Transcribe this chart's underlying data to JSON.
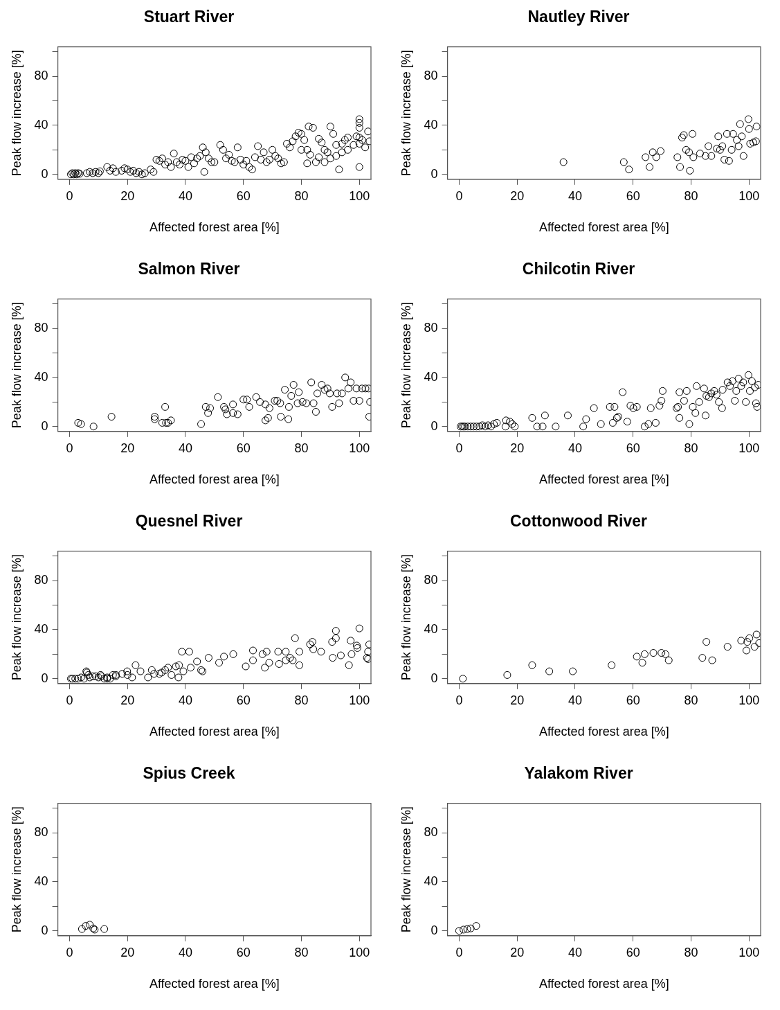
{
  "chart_data": [
    {
      "type": "scatter",
      "title": "Stuart River",
      "xlabel": "Affected forest area [%]",
      "ylabel": "Peak flow increase [%]",
      "marker": "circle",
      "xlim": [
        -4,
        104
      ],
      "ylim": [
        -4,
        104
      ],
      "xticks": [
        0,
        20,
        40,
        60,
        80,
        100
      ],
      "yticks": [
        0,
        {
          "value": 20,
          "label": null
        },
        40,
        {
          "value": 60,
          "label": null
        },
        80,
        {
          "value": 100,
          "label": null
        }
      ],
      "series": [
        {
          "color": "#000000",
          "x": [
            0.5,
            1,
            1.5,
            2,
            2.5,
            3,
            3.5,
            6,
            7,
            8,
            9,
            10,
            10.5,
            13,
            14,
            15,
            16,
            18,
            19,
            20,
            21,
            22,
            23,
            24,
            25,
            26,
            28,
            29,
            30,
            31,
            32,
            33,
            34,
            35,
            36,
            37,
            38,
            39,
            40,
            41,
            42,
            43,
            44,
            45,
            46,
            46.5,
            47,
            48,
            49,
            50,
            52,
            53,
            54,
            55,
            56,
            57,
            58,
            59,
            60,
            61,
            62,
            63,
            64,
            65,
            66,
            67,
            68,
            69,
            70,
            71,
            72,
            73,
            74,
            75,
            76,
            77,
            78,
            79,
            80,
            81,
            82,
            82.5,
            83,
            84,
            85,
            86,
            87,
            88,
            89,
            90,
            91,
            92,
            93,
            94,
            95,
            96,
            98,
            99,
            100,
            100,
            100,
            100,
            100,
            100,
            101,
            102,
            103,
            103.5,
            88,
            92,
            96,
            80,
            82,
            86,
            90,
            94
          ],
          "values": [
            0,
            1,
            0,
            1,
            0,
            1,
            0.5,
            1,
            2,
            1,
            2,
            1,
            2.5,
            6,
            3,
            5,
            2,
            3,
            5,
            4,
            2,
            3,
            1,
            2,
            0,
            1,
            4,
            2,
            12,
            11,
            13,
            8,
            10,
            6,
            17,
            10,
            8,
            12,
            11,
            6,
            14,
            9,
            13,
            15,
            22,
            2,
            18,
            13,
            10,
            10,
            24,
            20,
            13,
            16,
            11,
            10,
            22,
            12,
            8,
            11,
            6,
            4,
            14,
            23,
            12,
            18,
            10,
            12,
            20,
            15,
            13,
            9,
            10,
            25,
            22,
            27,
            31,
            34,
            20,
            28,
            20,
            39,
            16,
            38,
            10,
            29,
            26,
            20,
            18,
            39,
            33,
            24,
            4,
            25,
            28,
            20,
            24,
            31,
            45,
            42,
            38,
            30,
            25,
            6,
            28,
            22,
            35,
            27,
            10,
            15,
            30,
            33,
            9,
            14,
            13,
            18
          ]
        }
      ]
    },
    {
      "type": "scatter",
      "title": "Nautley River",
      "xlabel": "Affected forest area [%]",
      "ylabel": "Peak flow increase [%]",
      "marker": "circle",
      "xlim": [
        -4,
        104
      ],
      "ylim": [
        -4,
        104
      ],
      "xticks": [
        0,
        20,
        40,
        60,
        80,
        100
      ],
      "yticks": [
        0,
        {
          "value": 20,
          "label": null
        },
        40,
        {
          "value": 60,
          "label": null
        },
        80,
        {
          "value": 100,
          "label": null
        }
      ],
      "series": [
        {
          "color": "#000000",
          "x": [
            36,
            56.8,
            58.6,
            64.3,
            65.7,
            66.8,
            68,
            69.5,
            75.3,
            76.2,
            76.9,
            77.5,
            78.3,
            79.3,
            79.6,
            80.5,
            80.8,
            83.1,
            85,
            86,
            87,
            88.9,
            89.4,
            90,
            90.8,
            91.5,
            92.4,
            93.1,
            94,
            94.5,
            95.8,
            96.4,
            96.9,
            97.5,
            98.1,
            99.8,
            100,
            100.4,
            101.5,
            102.6,
            102.4
          ],
          "values": [
            10,
            10,
            4,
            14,
            6,
            18,
            14,
            19,
            14,
            6,
            30,
            32,
            20,
            18,
            3,
            33,
            14,
            17,
            15,
            23,
            15,
            21,
            31,
            20,
            23,
            12,
            33,
            11,
            20,
            33,
            28,
            23,
            41,
            31,
            15,
            45,
            37,
            25,
            26,
            39,
            27
          ]
        }
      ]
    },
    {
      "type": "scatter",
      "title": "Salmon River",
      "xlabel": "Affected forest area [%]",
      "ylabel": "Peak flow increase [%]",
      "marker": "circle",
      "xlim": [
        -4,
        104
      ],
      "ylim": [
        -4,
        104
      ],
      "xticks": [
        0,
        20,
        40,
        60,
        80,
        100
      ],
      "yticks": [
        0,
        {
          "value": 20,
          "label": null
        },
        40,
        {
          "value": 60,
          "label": null
        },
        80,
        {
          "value": 100,
          "label": null
        }
      ],
      "series": [
        {
          "color": "#000000",
          "x": [
            3,
            4,
            8.3,
            14.5,
            29.4,
            29.4,
            33,
            32,
            33.3,
            34,
            35,
            45.4,
            47,
            47.8,
            48.5,
            51.2,
            53.3,
            53.8,
            54.3,
            56.4,
            56.4,
            58,
            60,
            61.2,
            62,
            64.4,
            65.7,
            67.6,
            67.6,
            68.5,
            69,
            70.8,
            71.7,
            72.7,
            72.9,
            74.3,
            75.5,
            75.7,
            76.5,
            77.3,
            78.7,
            79.1,
            80.4,
            81.7,
            83.4,
            84.2,
            85,
            85.5,
            87,
            88,
            89,
            89.8,
            90.6,
            92.3,
            93,
            94,
            95.1,
            96.2,
            97,
            98,
            99,
            100,
            100.9,
            102.1,
            103.2,
            103.4,
            103.7
          ],
          "values": [
            3,
            2,
            0,
            8,
            8,
            6,
            16,
            3,
            3,
            3,
            5,
            2,
            16,
            11,
            15,
            24,
            16,
            14,
            10,
            18,
            11,
            10,
            22,
            22,
            16,
            24,
            20,
            18,
            5,
            7,
            15,
            21,
            21,
            19,
            8,
            30,
            6,
            16,
            25,
            34,
            19,
            28,
            20,
            19,
            36,
            19,
            12,
            27,
            34,
            30,
            31,
            27,
            16,
            27,
            19,
            27,
            40,
            31,
            36,
            21,
            31,
            21,
            31,
            31,
            31,
            8,
            20
          ]
        }
      ]
    },
    {
      "type": "scatter",
      "title": "Chilcotin River",
      "xlabel": "Affected forest area [%]",
      "ylabel": "Peak flow increase [%]",
      "marker": "circle",
      "xlim": [
        -4,
        104
      ],
      "ylim": [
        -4,
        104
      ],
      "xticks": [
        0,
        20,
        40,
        60,
        80,
        100
      ],
      "yticks": [
        0,
        {
          "value": 20,
          "label": null
        },
        40,
        {
          "value": 60,
          "label": null
        },
        80,
        {
          "value": 100,
          "label": null
        }
      ],
      "series": [
        {
          "color": "#000000",
          "x": [
            0.5,
            1,
            1.5,
            2,
            3,
            4,
            5,
            6,
            7,
            8,
            9,
            10,
            11,
            12,
            13,
            16.2,
            17.5,
            18.3,
            19.2,
            16,
            25.2,
            26.9,
            28.8,
            29.6,
            33.3,
            37.5,
            42.8,
            43.8,
            46.5,
            48.9,
            52,
            53.6,
            53,
            54.4,
            54.9,
            56.4,
            58,
            59.1,
            60.1,
            61.3,
            64,
            65.3,
            66.1,
            67.8,
            69.1,
            69.8,
            70.2,
            75,
            75.5,
            76,
            76,
            77.6,
            78.5,
            79.4,
            80.6,
            81.5,
            81.9,
            82.8,
            85,
            84.5,
            85.3,
            86.2,
            87,
            88,
            88.8,
            89.6,
            90.7,
            90.9,
            92.6,
            93.4,
            94.3,
            95.1,
            95.6,
            96.4,
            97.3,
            98,
            98.9,
            99.8,
            100.3,
            101,
            102,
            102.4,
            102.8,
            103.2
          ],
          "values": [
            0,
            0,
            0,
            0,
            0,
            0,
            0,
            0,
            0,
            1,
            0,
            1,
            0,
            2,
            3,
            5,
            4,
            2,
            0,
            0,
            7,
            0,
            0,
            9,
            0,
            9,
            0,
            6,
            15,
            2,
            16,
            16,
            3,
            7,
            8,
            28,
            4,
            17,
            15,
            16,
            0,
            2,
            15,
            3,
            17,
            21,
            29,
            15,
            16,
            28,
            7,
            21,
            29,
            2,
            16,
            11,
            33,
            20,
            9,
            31,
            25,
            24,
            27,
            29,
            26,
            20,
            15,
            30,
            36,
            33,
            37,
            21,
            29,
            39,
            33,
            36,
            20,
            42,
            29,
            37,
            32,
            19,
            16,
            34
          ]
        }
      ]
    },
    {
      "type": "scatter",
      "title": "Quesnel River",
      "xlabel": "Affected forest area [%]",
      "ylabel": "Peak flow increase [%]",
      "marker": "circle",
      "xlim": [
        -4,
        104
      ],
      "ylim": [
        -4,
        104
      ],
      "xticks": [
        0,
        20,
        40,
        60,
        80,
        100
      ],
      "yticks": [
        0,
        {
          "value": 20,
          "label": null
        },
        40,
        {
          "value": 60,
          "label": null
        },
        80,
        {
          "value": 100,
          "label": null
        }
      ],
      "series": [
        {
          "color": "#000000",
          "x": [
            0.5,
            1,
            2,
            3,
            4,
            5,
            6,
            6.5,
            7,
            8,
            9,
            10,
            11,
            12,
            13,
            14,
            15,
            16,
            5.8,
            10.7,
            13,
            16,
            18.2,
            19.9,
            20,
            21.6,
            22.8,
            24.5,
            27.1,
            28.4,
            29.2,
            31,
            31.8,
            33,
            34,
            35.2,
            36.7,
            37.6,
            37.8,
            38.8,
            39.3,
            41.3,
            41.8,
            44,
            45.4,
            45.9,
            48,
            51.6,
            53.3,
            56.5,
            60.8,
            63.3,
            63.3,
            66.6,
            67.4,
            68,
            68.9,
            72,
            72.3,
            74.6,
            74.6,
            76.1,
            77,
            77.8,
            79.3,
            79.3,
            83,
            83.8,
            84.1,
            86.8,
            90.6,
            90.8,
            91.9,
            91.9,
            93.6,
            96.4,
            97,
            97.3,
            99.1,
            99.3,
            100,
            102.6,
            103,
            103.4,
            103
          ],
          "values": [
            0,
            0,
            0,
            0,
            1,
            0,
            5,
            3,
            1,
            2,
            2,
            1,
            2,
            0,
            1,
            0,
            3,
            2,
            6,
            3,
            0,
            3,
            4,
            6,
            3,
            1,
            11,
            6,
            1,
            7,
            4,
            4,
            5,
            7,
            9,
            3,
            10,
            1,
            11,
            22,
            6,
            22,
            9,
            14,
            7,
            6,
            17,
            13,
            18,
            20,
            10,
            23,
            15,
            20,
            9,
            22,
            13,
            22,
            12,
            22,
            15,
            17,
            15,
            33,
            22,
            11,
            28,
            30,
            24,
            22,
            30,
            17,
            39,
            33,
            19,
            11,
            31,
            20,
            27,
            25,
            41,
            17,
            16,
            28,
            22
          ]
        }
      ]
    },
    {
      "type": "scatter",
      "title": "Cottonwood River",
      "xlabel": "Affected forest area [%]",
      "ylabel": "Peak flow increase [%]",
      "marker": "circle",
      "xlim": [
        -4,
        104
      ],
      "ylim": [
        -4,
        104
      ],
      "xticks": [
        0,
        20,
        40,
        60,
        80,
        100
      ],
      "yticks": [
        0,
        {
          "value": 20,
          "label": null
        },
        40,
        {
          "value": 60,
          "label": null
        },
        80,
        {
          "value": 100,
          "label": null
        }
      ],
      "series": [
        {
          "color": "#000000",
          "x": [
            1.3,
            16.6,
            25.2,
            31.1,
            39.2,
            52.6,
            61.3,
            63.2,
            64,
            67,
            69.8,
            71.2,
            72.3,
            83.9,
            85.3,
            87.3,
            92.6,
            97.3,
            99.1,
            99.4,
            100.1,
            101.9,
            102.6,
            103.5
          ],
          "values": [
            0,
            3,
            11,
            6,
            6,
            11,
            18,
            13,
            20,
            21,
            21,
            20,
            15,
            17,
            30,
            15,
            26,
            31,
            23,
            30,
            33,
            26,
            36,
            29
          ]
        }
      ]
    },
    {
      "type": "scatter",
      "title": "Spius Creek",
      "xlabel": "Affected forest area [%]",
      "ylabel": "Peak flow increase [%]",
      "marker": "circle",
      "xlim": [
        -4,
        104
      ],
      "ylim": [
        -4,
        104
      ],
      "xticks": [
        0,
        20,
        40,
        60,
        80,
        100
      ],
      "yticks": [
        0,
        {
          "value": 20,
          "label": null
        },
        40,
        {
          "value": 60,
          "label": null
        },
        80,
        {
          "value": 100,
          "label": null
        }
      ],
      "series": [
        {
          "color": "#000000",
          "x": [
            4.3,
            5.6,
            7,
            8.2,
            8.7,
            12
          ],
          "values": [
            1.5,
            4,
            5,
            2,
            1,
            1.5
          ]
        }
      ]
    },
    {
      "type": "scatter",
      "title": "Yalakom River",
      "xlabel": "Affected forest area [%]",
      "ylabel": "Peak flow increase [%]",
      "marker": "circle",
      "xlim": [
        -4,
        104
      ],
      "ylim": [
        -4,
        104
      ],
      "xticks": [
        0,
        20,
        40,
        60,
        80,
        100
      ],
      "yticks": [
        0,
        {
          "value": 20,
          "label": null
        },
        40,
        {
          "value": 60,
          "label": null
        },
        80,
        {
          "value": 100,
          "label": null
        }
      ],
      "series": [
        {
          "color": "#000000",
          "x": [
            0,
            1.5,
            2.8,
            4,
            5.9
          ],
          "values": [
            0,
            1,
            1.5,
            2,
            4
          ]
        }
      ]
    }
  ]
}
